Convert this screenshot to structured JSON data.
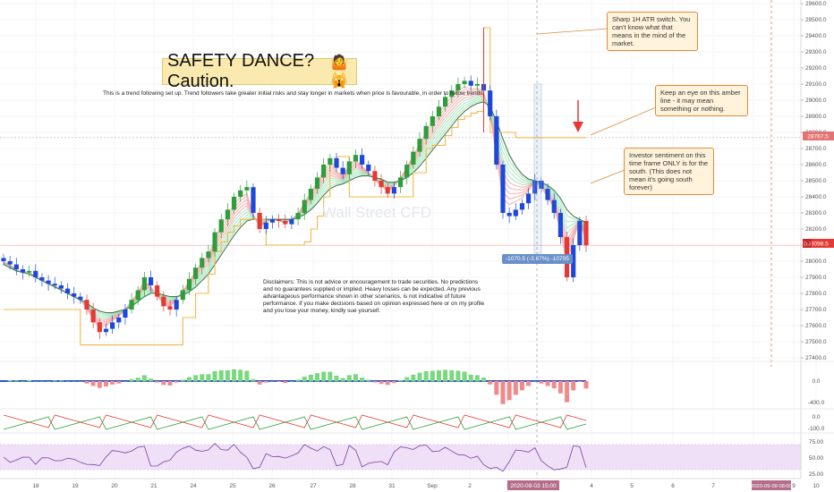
{
  "annotations": {
    "title": "SAFETY DANCE? Caution.",
    "title_emoji": "🤷🙀",
    "subtitle": "This is a trend following set up. Trend followers take greater initial risks and stay longer in markets when price is favourable, in order to follow trends.",
    "watermark": "Wall Street CFD",
    "callout_atr": "Sharp 1H ATR switch. You can't know what that means in the mind of the market.",
    "callout_amber": "Keep an eye on this amber line - it may mean something or nothing.",
    "callout_sentiment": "Investor sentiment on this time frame ONLY is for the south. (This does not mean it's going south forever)",
    "disclaimer": "Disclaimers: This is not advice or encouragement to trade securities. No predictions and no guarantees supplied or implied. Heavy losses can be expected. Any previous advantageous performance shown in other scenarios, is not indicative of future performance.  If you make decisions based on opinion expressed here or on my profile and you lose your money, kindly sue yourself.",
    "measure_label": "-1070.5 (-3.67%) -10705"
  },
  "price_badges": {
    "label_d": "D.J",
    "current_price": "28098.5",
    "amber_level": "28767.5"
  },
  "time_badges": {
    "cursor": "2020-09-03  15:00",
    "end": "2020-09-09  08:00"
  },
  "colors": {
    "up": "#2e9d3a",
    "down": "#e53935",
    "neutral": "#1e49d8",
    "amber": "#f0b84a",
    "ribbon_fast": "#9be0b4",
    "ribbon_slow": "#f4a0a0",
    "price_badge": "#e53935",
    "rsi_fill": "#efe0f8"
  },
  "chart_data": [
    {
      "type": "line",
      "panel": "price",
      "ylim": [
        27400,
        29600
      ],
      "y_ticks": [
        "27400.0",
        "27500.0",
        "27600.0",
        "27700.0",
        "27800.0",
        "27900.0",
        "28000.0",
        "28100.0",
        "28200.0",
        "28300.0",
        "28400.0",
        "28500.0",
        "28600.0",
        "28700.0",
        "28800.0",
        "28900.0",
        "29000.0",
        "29100.0",
        "29200.0",
        "29300.0",
        "29400.0",
        "29500.0",
        "29600.0"
      ],
      "x_ticks": [
        "18",
        "19",
        "20",
        "21",
        "24",
        "25",
        "26",
        "27",
        "28",
        "31",
        "Sep",
        "2",
        "3",
        "4",
        "5",
        "6",
        "7",
        "8",
        "9",
        "10"
      ],
      "series": [
        {
          "values": [
            28000,
            27980,
            27950,
            27930,
            27940,
            27900,
            27880,
            27860,
            27850,
            27830,
            27800,
            27780,
            27760,
            27700,
            27620,
            27560,
            27580,
            27620,
            27650,
            27700,
            27760,
            27820,
            27900,
            27850,
            27780,
            27720,
            27700,
            27760,
            27820,
            27890,
            27960,
            28020,
            28060,
            28180,
            28260,
            28320,
            28400,
            28440,
            28460,
            28300,
            28200,
            28240,
            28260,
            28250,
            28230,
            28260,
            28300,
            28380,
            28450,
            28520,
            28600,
            28640,
            28580,
            28540,
            28620,
            28660,
            28600,
            28560,
            28500,
            28460,
            28420,
            28460,
            28520,
            28600,
            28680,
            28760,
            28840,
            28900,
            28960,
            29020,
            29060,
            29100,
            29120,
            29090,
            29100,
            29060,
            28900,
            28600,
            28300,
            28280,
            28320,
            28360,
            28420,
            28500,
            28450,
            28380,
            28300,
            28150,
            27900,
            28100,
            28250,
            28098.5
          ]
        },
        {
          "values": [
            27980,
            27960,
            27940,
            27930,
            27920,
            27900,
            27880,
            27860,
            27840,
            27820,
            27800,
            27780,
            27760,
            27740,
            27710,
            27690,
            27680,
            27680,
            27690,
            27700,
            27720,
            27750,
            27780,
            27800,
            27800,
            27790,
            27780,
            27780,
            27790,
            27810,
            27840,
            27880,
            27920,
            27980,
            28040,
            28100,
            28160,
            28210,
            28250,
            28260,
            28260,
            28260,
            28260,
            28260,
            28260,
            28260,
            28270,
            28290,
            28320,
            28360,
            28410,
            28450,
            28470,
            28480,
            28500,
            28520,
            28530,
            28530,
            28520,
            28510,
            28490,
            28490,
            28500,
            28520,
            28550,
            28590,
            28640,
            28690,
            28740,
            28790,
            28840,
            28890,
            28930,
            28960,
            28980,
            28990,
            28960,
            28870,
            28760,
            28660,
            28590,
            28540,
            28510,
            28500,
            28490,
            28470,
            28440,
            28390,
            28320,
            28280,
            28260,
            28240
          ]
        },
        {
          "values": [
            27700,
            27700,
            27700,
            27700,
            27700,
            27700,
            27700,
            27700,
            27700,
            27700,
            27700,
            27700,
            27480,
            27480,
            27480,
            27480,
            27480,
            27480,
            27480,
            27480,
            27480,
            27480,
            27480,
            27480,
            27480,
            27480,
            27480,
            27480,
            27650,
            27650,
            27800,
            27800,
            27920,
            28060,
            28120,
            28180,
            28220,
            28260,
            28260,
            28260,
            28260,
            28100,
            28100,
            28100,
            28100,
            28100,
            28100,
            28120,
            28200,
            28280,
            28400,
            28600,
            28650,
            28650,
            28400,
            28400,
            28400,
            28400,
            28400,
            28400,
            28400,
            28400,
            28400,
            28400,
            28550,
            28550,
            28700,
            28720,
            28720,
            28780,
            28830,
            28880,
            28900,
            28920,
            28930,
            29450,
            28800,
            28800,
            28800,
            28800,
            28767.5,
            28767.5,
            28767.5,
            28767.5,
            28767.5,
            28767.5,
            28767.5,
            28767.5,
            28767.5,
            28767.5,
            28767.5,
            28767.5
          ]
        }
      ]
    },
    {
      "type": "bar",
      "panel": "momentum",
      "y_ticks": [
        "0.0",
        "-400.0"
      ]
    },
    {
      "type": "line",
      "panel": "oscillator",
      "y_ticks": [
        "0.0",
        "-100.0"
      ]
    },
    {
      "type": "line",
      "panel": "rsi",
      "y_ticks": [
        "75.00",
        "50.00",
        "25.00"
      ]
    }
  ]
}
